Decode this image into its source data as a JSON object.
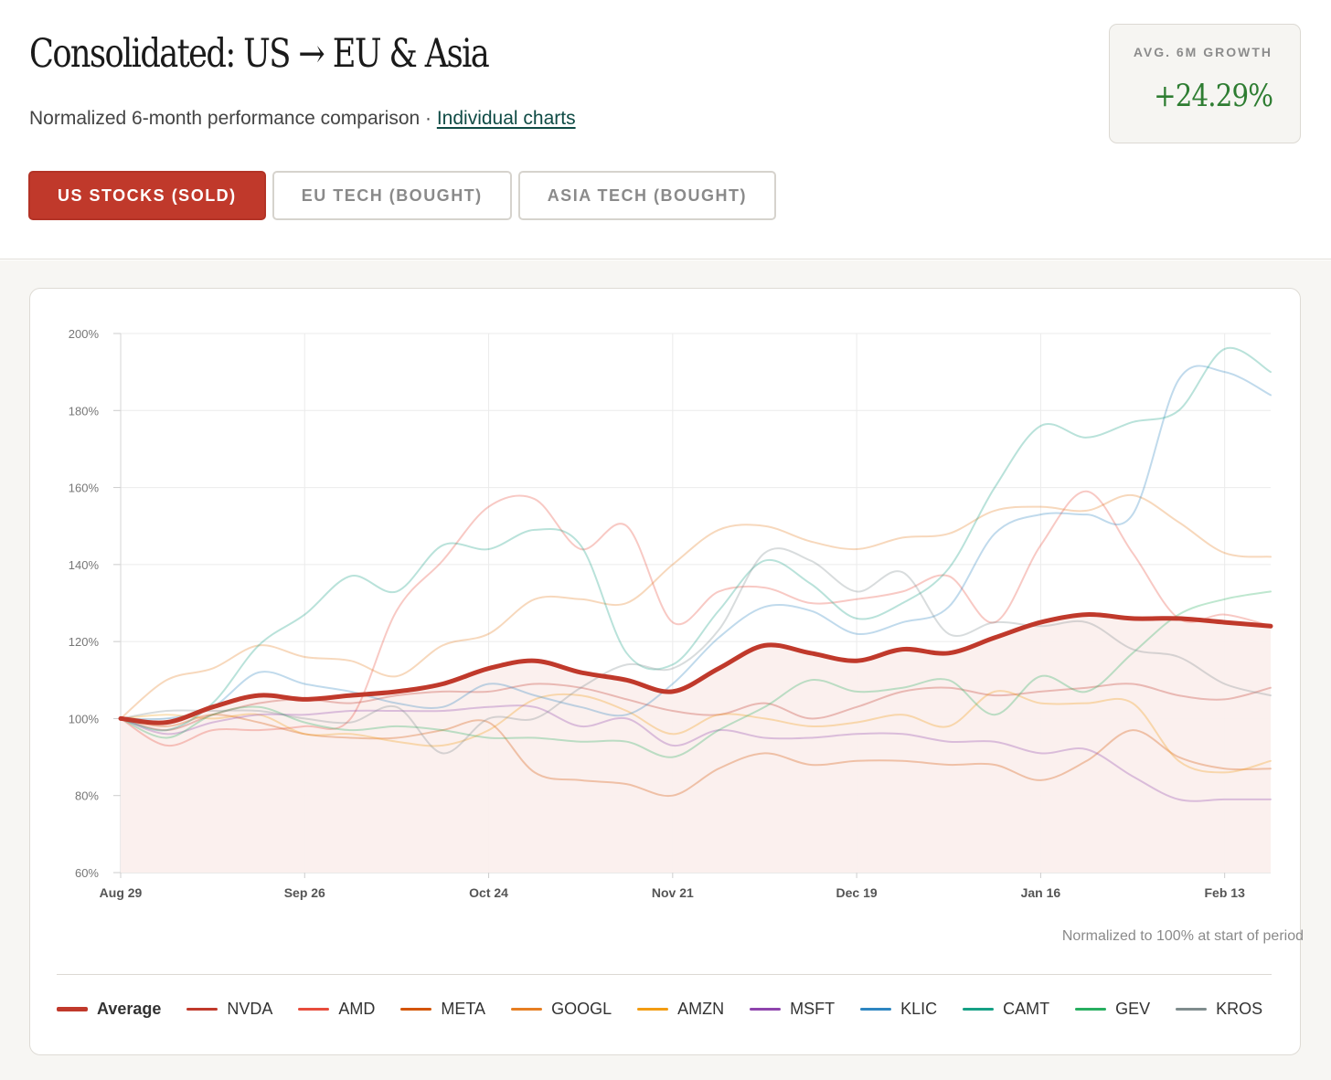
{
  "header": {
    "title": "Consolidated: US → EU & Asia",
    "subtitle": "Normalized 6-month performance comparison · ",
    "link_label": "Individual charts",
    "tabs": [
      {
        "label": "US STOCKS (SOLD)",
        "active": true
      },
      {
        "label": "EU TECH (BOUGHT)",
        "active": false
      },
      {
        "label": "ASIA TECH (BOUGHT)",
        "active": false
      }
    ],
    "stat": {
      "label": "AVG. 6M GROWTH",
      "value": "+24.29%"
    }
  },
  "colors": {
    "accent": "#c0392b",
    "positive": "#2e7d32",
    "fill": "#fbefed"
  },
  "chart_data": {
    "type": "line",
    "x": [
      "Aug 29",
      "Sep 5",
      "Sep 12",
      "Sep 19",
      "Sep 26",
      "Oct 3",
      "Oct 10",
      "Oct 17",
      "Oct 24",
      "Oct 31",
      "Nov 7",
      "Nov 14",
      "Nov 21",
      "Nov 28",
      "Dec 5",
      "Dec 12",
      "Dec 19",
      "Dec 26",
      "Jan 2",
      "Jan 9",
      "Jan 16",
      "Jan 23",
      "Jan 30",
      "Feb 6",
      "Feb 13",
      "Feb 20"
    ],
    "x_tick_labels": [
      "Aug 29",
      "Sep 26",
      "Oct 24",
      "Nov 21",
      "Dec 19",
      "Jan 16",
      "Feb 13"
    ],
    "y_range": [
      60,
      200
    ],
    "y_ticks": [
      60,
      80,
      100,
      120,
      140,
      160,
      180,
      200
    ],
    "y_tick_labels": [
      "60%",
      "80%",
      "100%",
      "120%",
      "140%",
      "160%",
      "180%",
      "200%"
    ],
    "grid": true,
    "legend_position": "bottom",
    "note": "Normalized to 100% at start of period",
    "series": [
      {
        "name": "NVDA",
        "color": "#c0392b",
        "values": [
          100,
          97,
          101,
          104,
          105,
          104,
          106,
          107,
          107,
          109,
          108,
          105,
          102,
          101,
          104,
          100,
          103,
          107,
          108,
          106,
          107,
          108,
          109,
          106,
          105,
          108
        ]
      },
      {
        "name": "AMD",
        "color": "#e74c3c",
        "values": [
          100,
          93,
          97,
          97,
          98,
          100,
          128,
          141,
          155,
          157,
          144,
          150,
          125,
          133,
          134,
          130,
          131,
          133,
          137,
          125,
          145,
          159,
          143,
          126,
          127,
          124
        ]
      },
      {
        "name": "META",
        "color": "#d35400",
        "values": [
          100,
          98,
          101,
          99,
          96,
          95,
          95,
          97,
          99,
          86,
          84,
          83,
          80,
          87,
          91,
          88,
          89,
          89,
          88,
          88,
          84,
          89,
          97,
          90,
          87,
          87
        ]
      },
      {
        "name": "GOOGL",
        "color": "#e67e22",
        "values": [
          100,
          110,
          113,
          119,
          116,
          115,
          111,
          119,
          122,
          131,
          131,
          130,
          140,
          149,
          150,
          146,
          144,
          147,
          148,
          154,
          155,
          154,
          158,
          151,
          143,
          142
        ]
      },
      {
        "name": "AMZN",
        "color": "#f39c12",
        "values": [
          100,
          101,
          100,
          101,
          96,
          96,
          94,
          93,
          97,
          105,
          106,
          102,
          96,
          101,
          100,
          98,
          99,
          101,
          98,
          107,
          104,
          104,
          104,
          89,
          86,
          89
        ]
      },
      {
        "name": "MSFT",
        "color": "#8e44ad",
        "values": [
          100,
          96,
          99,
          101,
          101,
          102,
          102,
          102,
          103,
          103,
          98,
          100,
          93,
          97,
          95,
          95,
          96,
          96,
          94,
          94,
          91,
          92,
          85,
          79,
          79,
          79
        ]
      },
      {
        "name": "KLIC",
        "color": "#2e86c1",
        "values": [
          100,
          100,
          103,
          112,
          109,
          107,
          104,
          103,
          109,
          106,
          103,
          101,
          109,
          121,
          129,
          128,
          122,
          125,
          129,
          148,
          153,
          153,
          153,
          188,
          190,
          184
        ]
      },
      {
        "name": "CAMT",
        "color": "#16a085",
        "values": [
          100,
          97,
          104,
          119,
          127,
          137,
          133,
          145,
          144,
          149,
          145,
          117,
          114,
          128,
          141,
          135,
          126,
          130,
          139,
          160,
          176,
          173,
          177,
          180,
          196,
          190
        ]
      },
      {
        "name": "GEV",
        "color": "#27ae60",
        "values": [
          100,
          95,
          101,
          103,
          99,
          97,
          98,
          97,
          95,
          95,
          94,
          94,
          90,
          97,
          103,
          110,
          107,
          108,
          110,
          101,
          111,
          107,
          117,
          127,
          131,
          133
        ]
      },
      {
        "name": "KROS",
        "color": "#7f8c8d",
        "values": [
          100,
          102,
          102,
          102,
          100,
          99,
          103,
          91,
          100,
          100,
          108,
          114,
          113,
          123,
          143,
          141,
          133,
          138,
          122,
          125,
          124,
          125,
          118,
          116,
          109,
          106
        ]
      }
    ],
    "average": {
      "name": "Average",
      "color": "#c0392b",
      "values": [
        100,
        99,
        103,
        106,
        105,
        106,
        107,
        109,
        113,
        115,
        112,
        110,
        107,
        113,
        119,
        117,
        115,
        118,
        117,
        121,
        125,
        127,
        126,
        126,
        125,
        124
      ]
    }
  }
}
